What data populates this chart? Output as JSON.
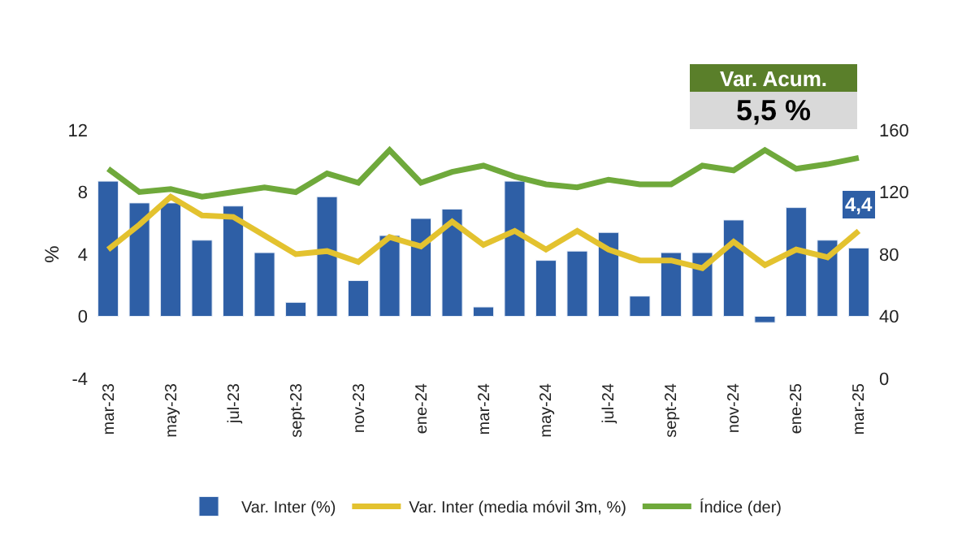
{
  "chart_data": {
    "type": "bar",
    "categories": [
      "mar-23",
      null,
      "may-23",
      null,
      "jul-23",
      null,
      "sept-23",
      null,
      "nov-23",
      null,
      "ene-24",
      null,
      "mar-24",
      null,
      "may-24",
      null,
      "jul-24",
      null,
      "sept-24",
      null,
      "nov-24",
      null,
      "ene-25",
      null,
      "mar-25"
    ],
    "series": [
      {
        "name": "Var. Inter (%)",
        "color": "#2e5fa6",
        "values": [
          8.7,
          7.3,
          7.3,
          4.9,
          7.1,
          4.1,
          0.9,
          7.7,
          2.3,
          5.2,
          6.3,
          6.9,
          0.6,
          8.7,
          3.6,
          4.2,
          5.4,
          1.3,
          4.1,
          4.1,
          6.2,
          -0.4,
          7.0,
          4.9,
          4.4
        ],
        "value_labels": [
          null,
          null,
          null,
          null,
          null,
          null,
          null,
          null,
          null,
          null,
          null,
          null,
          null,
          null,
          null,
          null,
          null,
          null,
          null,
          null,
          null,
          null,
          null,
          null,
          "4,4"
        ]
      },
      {
        "name": "Var. Inter (media móvil 3m, %)",
        "type": "line",
        "color": "#e3c22f",
        "values": [
          4.3,
          5.9,
          7.7,
          6.5,
          6.4,
          5.2,
          4.0,
          4.2,
          3.5,
          5.1,
          4.5,
          6.1,
          4.6,
          5.5,
          4.3,
          5.5,
          4.3,
          3.6,
          3.6,
          3.1,
          4.8,
          3.3,
          4.3,
          3.8,
          5.5
        ]
      },
      {
        "name": "Índice (der)",
        "type": "line",
        "axis": "y2",
        "color": "#6fa93b",
        "values": [
          135,
          120,
          122,
          117,
          120,
          123,
          120,
          132,
          126,
          147,
          126,
          133,
          137,
          130,
          125,
          123,
          128,
          125,
          125,
          137,
          134,
          147,
          135,
          138,
          142
        ]
      }
    ],
    "ylabel": "%",
    "ylim": [
      -4,
      12
    ],
    "yticks": [
      -4,
      0,
      4,
      8,
      12
    ],
    "y2lim": [
      0,
      160
    ],
    "y2ticks": [
      0,
      40,
      80,
      120,
      160
    ],
    "annotations": [
      "Var. Acum.",
      "5,5 %"
    ],
    "legend": "bottom",
    "marker": "none",
    "line_style": "solid"
  }
}
